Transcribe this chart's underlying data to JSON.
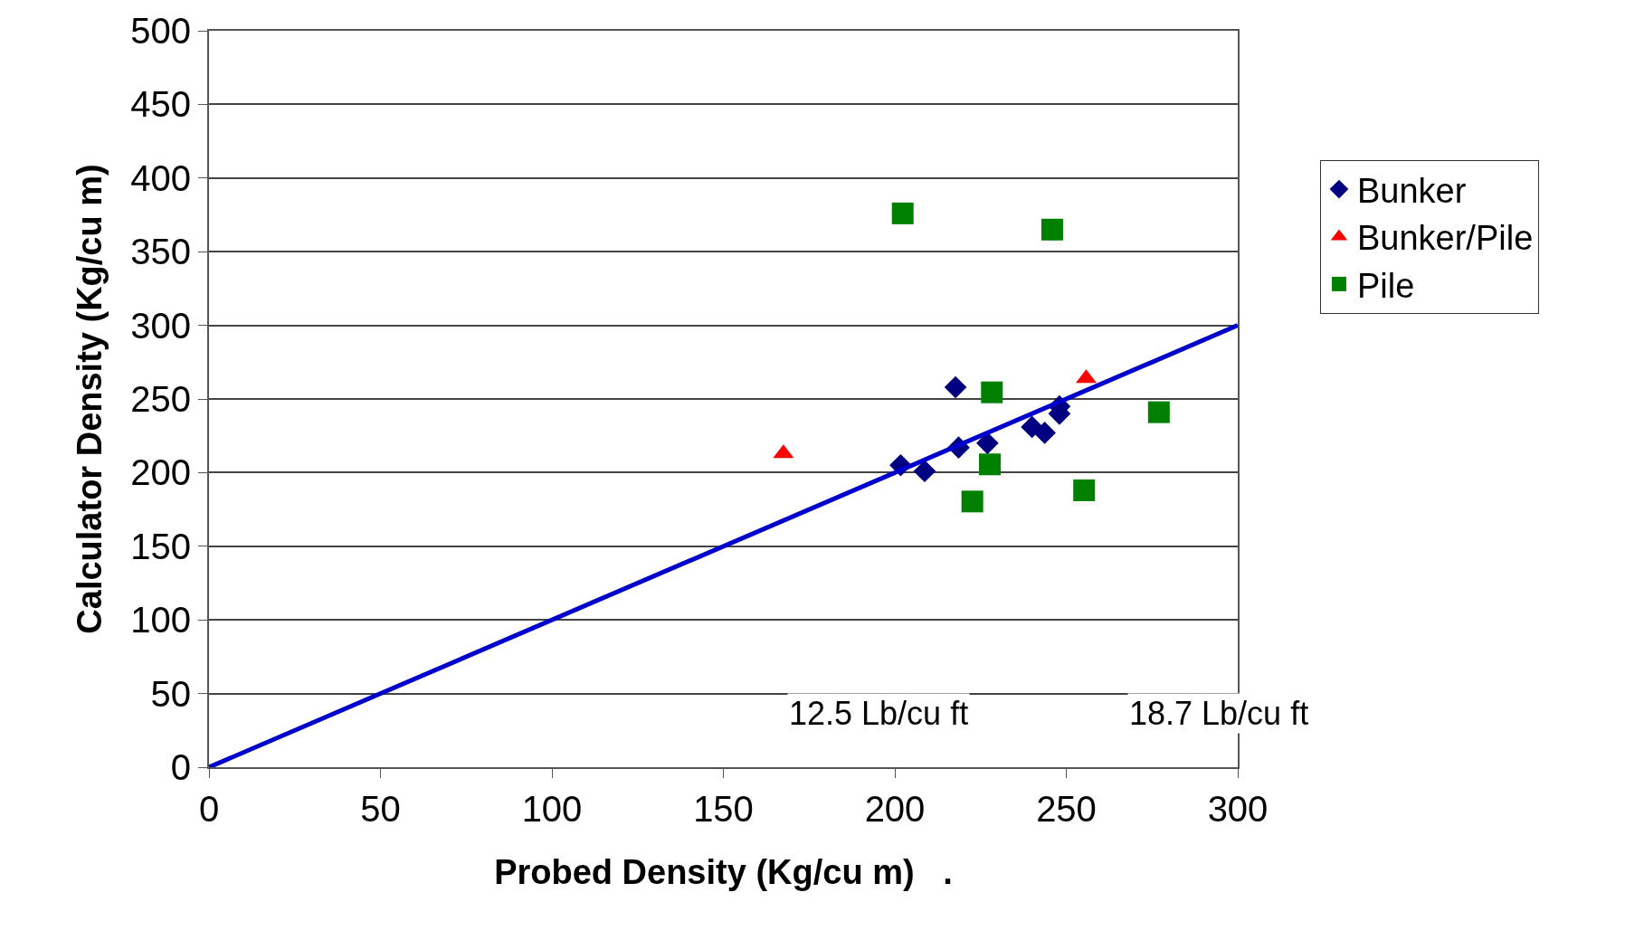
{
  "chart_data": {
    "type": "scatter",
    "xlabel": "Probed Density (Kg/cu m)   .",
    "ylabel": "Calculator Density (Kg/cu m)",
    "xlim": [
      0,
      300
    ],
    "xticks": [
      0,
      50,
      100,
      150,
      200,
      250,
      300
    ],
    "ylim": [
      0,
      500
    ],
    "yticks": [
      0,
      50,
      100,
      150,
      200,
      250,
      300,
      350,
      400,
      450,
      500
    ],
    "grid": "y",
    "legend": "right",
    "series": [
      {
        "name": "Bunker",
        "color": "#000080",
        "marker": "diamond",
        "x": [
          201.7,
          208.7,
          217.7,
          218.6,
          227,
          240,
          243.7,
          248,
          248
        ],
        "values": [
          205,
          201,
          258,
          217,
          220,
          231,
          227,
          245,
          240
        ]
      },
      {
        "name": "Bunker/Pile",
        "color": "#ff0000",
        "marker": "triangle",
        "x": [
          167.5,
          255.8
        ],
        "values": [
          213,
          264
        ]
      },
      {
        "name": "Pile",
        "color": "#008000",
        "marker": "square",
        "x": [
          202.3,
          245.9,
          228.3,
          227.7,
          222.6,
          255.2,
          277
        ],
        "values": [
          376,
          365,
          254.5,
          205.6,
          180.4,
          188,
          241
        ]
      },
      {
        "type": "line",
        "color": "#0000cc",
        "marker": "none",
        "x": [
          0,
          300
        ],
        "values": [
          0,
          300
        ]
      }
    ],
    "annotations": [
      "12.5 Lb/cu ft",
      "18.7 Lb/cu ft"
    ]
  }
}
